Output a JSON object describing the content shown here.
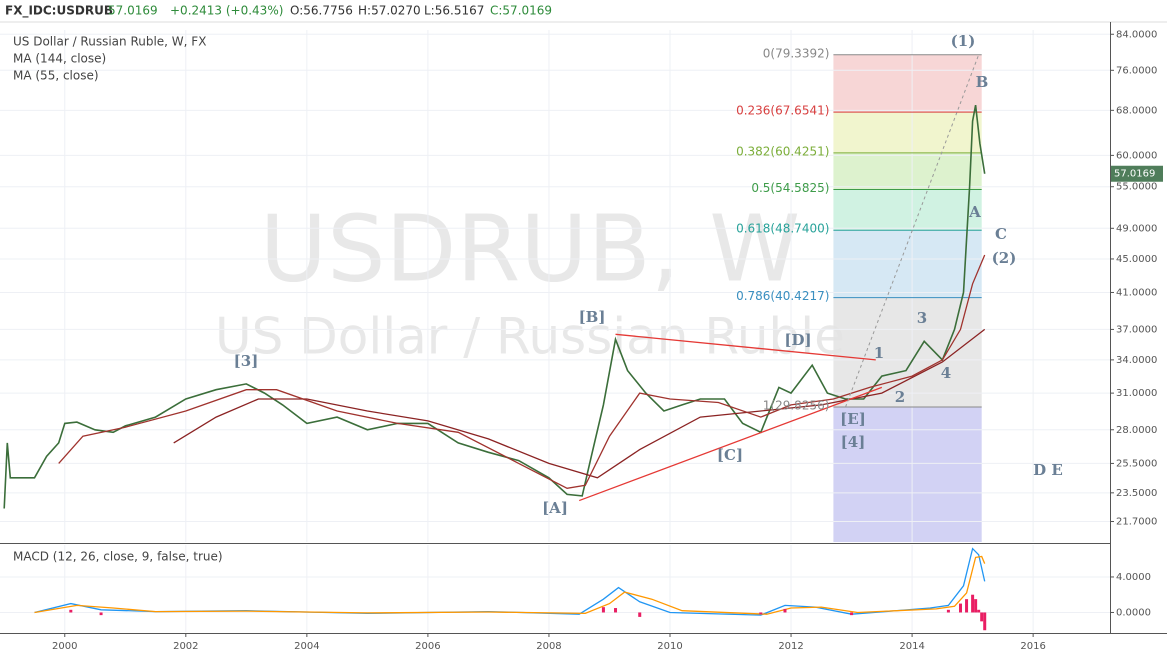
{
  "header": {
    "symbol": "FX_IDC:USDRUB",
    "price": "57.0169",
    "change": "+0.2413 (+0.43%)",
    "open": "O:56.7756",
    "high": "H:57.0270",
    "low": "L:56.5167",
    "close": "C:57.0169"
  },
  "chart_data": [
    {
      "type": "line",
      "title": "US Dollar / Russian Ruble, W, FX",
      "watermark": [
        "USDRUB, W",
        "US Dollar / Russian Ruble"
      ],
      "log_scale": true,
      "grid": true,
      "xlim": [
        1998.93,
        2017.27
      ],
      "xticks": [
        2000,
        2002,
        2004,
        2006,
        2008,
        2010,
        2012,
        2014,
        2016
      ],
      "ylim": [
        20.5,
        85
      ],
      "yticks": [
        {
          "value": 21.7,
          "label": "21.7000"
        },
        {
          "value": 23.5,
          "label": "23.5000"
        },
        {
          "value": 25.5,
          "label": "25.5000"
        },
        {
          "value": 28,
          "label": "28.0000"
        },
        {
          "value": 31,
          "label": "31.0000"
        },
        {
          "value": 34,
          "label": "34.0000"
        },
        {
          "value": 37,
          "label": "37.0000"
        },
        {
          "value": 41,
          "label": "41.0000"
        },
        {
          "value": 45,
          "label": "45.0000"
        },
        {
          "value": 49,
          "label": "49.0000"
        },
        {
          "value": 55,
          "label": "55.0000"
        },
        {
          "value": 60,
          "label": "60.0000"
        },
        {
          "value": 68,
          "label": "68.0000"
        },
        {
          "value": 76,
          "label": "76.0000"
        },
        {
          "value": 84,
          "label": "84.0000"
        }
      ],
      "series": [
        {
          "color": "#3b6e3a",
          "x": [
            1999.0,
            1999.05,
            1999.1,
            1999.3,
            1999.5,
            1999.7,
            1999.9,
            2000.0,
            2000.2,
            2000.5,
            2000.8,
            2001.0,
            2001.5,
            2002.0,
            2002.5,
            2003.0,
            2003.3,
            2003.6,
            2004.0,
            2004.5,
            2005.0,
            2005.5,
            2006.0,
            2006.5,
            2007.0,
            2007.5,
            2008.0,
            2008.3,
            2008.55,
            2008.7,
            2008.9,
            2009.1,
            2009.3,
            2009.6,
            2009.9,
            2010.2,
            2010.5,
            2010.9,
            2011.2,
            2011.5,
            2011.8,
            2012.0,
            2012.35,
            2012.6,
            2012.9,
            2013.2,
            2013.5,
            2013.9,
            2014.2,
            2014.5,
            2014.7,
            2014.85,
            2014.95,
            2015.0,
            2015.05,
            2015.12,
            2015.2
          ],
          "values": [
            22.5,
            27,
            24.5,
            24.5,
            24.5,
            26,
            27,
            28.5,
            28.6,
            28,
            27.8,
            28.3,
            29,
            30.5,
            31.3,
            31.8,
            31,
            30,
            28.5,
            29,
            28,
            28.5,
            28.5,
            27,
            26.3,
            25.7,
            24.5,
            23.4,
            23.3,
            26,
            30,
            36,
            33,
            31,
            29.5,
            30,
            30.5,
            30.5,
            28.5,
            27.8,
            31.5,
            31,
            33.5,
            31,
            30.5,
            30.5,
            32.5,
            33,
            35.8,
            34,
            37,
            41,
            55,
            66,
            69,
            62,
            57.0169
          ]
        },
        {
          "name": "MA (144, close)",
          "color": "#8b2323",
          "x": [
            2001.8,
            2002.5,
            2003.2,
            2004.0,
            2005.0,
            2006.0,
            2007.0,
            2008.0,
            2008.8,
            2009.5,
            2010.5,
            2011.5,
            2012.5,
            2013.5,
            2014.5,
            2015.2
          ],
          "values": [
            27,
            29,
            30.5,
            30.5,
            29.5,
            28.7,
            27.3,
            25.5,
            24.5,
            26.5,
            29,
            29.5,
            30,
            31,
            33.8,
            37
          ]
        },
        {
          "name": "MA (55, close)",
          "color": "#a0332e",
          "x": [
            1999.9,
            2000.3,
            2001.0,
            2002.0,
            2003.0,
            2003.5,
            2004.5,
            2005.5,
            2006.5,
            2007.5,
            2008.3,
            2008.6,
            2009.0,
            2009.5,
            2010.0,
            2010.8,
            2011.5,
            2012.0,
            2012.7,
            2013.3,
            2014.0,
            2014.5,
            2014.8,
            2015.0,
            2015.2
          ],
          "values": [
            25.5,
            27.5,
            28.2,
            29.5,
            31.3,
            31.3,
            29.5,
            28.5,
            27.8,
            25.5,
            23.8,
            24,
            27.5,
            31,
            30.5,
            30.2,
            29,
            30,
            30.5,
            31.5,
            32.5,
            34,
            37,
            42,
            45.5
          ]
        }
      ],
      "fib": {
        "x": [
          2012.7,
          2015.15
        ],
        "levels": [
          {
            "label": "0(79.3392)",
            "value": 79.3392,
            "color": "#888888",
            "fill": "#f6cfcf"
          },
          {
            "label": "0.236(67.6541)",
            "value": 67.6541,
            "color": "#d84040",
            "fill": "#eef3c6"
          },
          {
            "label": "0.382(60.4251)",
            "value": 60.4251,
            "color": "#7cae3a",
            "fill": "#d7f0c6"
          },
          {
            "label": "0.5(54.5825)",
            "value": 54.5825,
            "color": "#3e9c4a",
            "fill": "#c8f0dd"
          },
          {
            "label": "0.618(48.7400)",
            "value": 48.74,
            "color": "#29a39a",
            "fill": "#cfe4f2"
          },
          {
            "label": "0.786(40.4217)",
            "value": 40.4217,
            "color": "#3a8fc0",
            "fill": "#e3e3e3"
          },
          {
            "label": "1(29.8256)",
            "value": 29.8256,
            "color": "#888888",
            "fill": "#cacaf2"
          }
        ]
      },
      "trendlines": [
        {
          "color": "#e53935",
          "x": [
            2009.1,
            2013.4
          ],
          "y": [
            36.5,
            34
          ]
        },
        {
          "color": "#e53935",
          "x": [
            2008.5,
            2013.5
          ],
          "y": [
            23,
            31.5
          ]
        },
        {
          "color": "#999999",
          "dashed": true,
          "x": [
            2012.9,
            2015.1
          ],
          "y": [
            29.8256,
            79.3392
          ]
        }
      ],
      "wave_labels": [
        "(1)",
        "B",
        "A",
        "C",
        "(2)",
        "[3]",
        "[B]",
        "[D]",
        "1",
        "3",
        "4",
        "2",
        "[E]",
        "[4]",
        "[C]",
        "[A]",
        "D E"
      ]
    },
    {
      "type": "line",
      "title": "MACD (12, 26, close, 9, false, true)",
      "grid": true,
      "xlim": [
        1998.93,
        2017.27
      ],
      "ylim": [
        -2.2,
        7.6
      ],
      "yticks": [
        {
          "value": 0,
          "label": "0.0000"
        },
        {
          "value": 4,
          "label": "4.0000"
        }
      ],
      "series": [
        {
          "color": "#2196f3",
          "x": [
            1999.5,
            2000.1,
            2000.6,
            2001.5,
            2003.0,
            2005.0,
            2007.0,
            2008.5,
            2008.9,
            2009.15,
            2009.5,
            2010.0,
            2011.5,
            2011.9,
            2012.4,
            2013.0,
            2014.3,
            2014.6,
            2014.85,
            2015.0,
            2015.1,
            2015.2
          ],
          "values": [
            0,
            1.0,
            0.3,
            0.1,
            0.2,
            -0.1,
            0.1,
            -0.2,
            1.5,
            2.8,
            1.2,
            0,
            -0.3,
            0.8,
            0.6,
            -0.2,
            0.5,
            0.8,
            3,
            7.2,
            6.5,
            3.5
          ]
        },
        {
          "color": "#ff9800",
          "x": [
            1999.5,
            2000.2,
            2000.8,
            2001.5,
            2003.0,
            2005.0,
            2007.0,
            2008.6,
            2009.0,
            2009.25,
            2009.7,
            2010.2,
            2011.6,
            2012.0,
            2012.5,
            2013.1,
            2014.4,
            2014.7,
            2014.9,
            2015.05,
            2015.15,
            2015.2
          ],
          "values": [
            0,
            0.8,
            0.5,
            0.1,
            0.15,
            -0.05,
            0.05,
            -0.1,
            1.0,
            2.3,
            1.5,
            0.2,
            -0.2,
            0.5,
            0.6,
            0,
            0.4,
            0.7,
            2.2,
            6.2,
            6.3,
            5.5
          ]
        },
        {
          "color": "#e91e63",
          "style": "histogram",
          "x": [
            2000.1,
            2000.6,
            2008.9,
            2009.1,
            2009.5,
            2011.5,
            2011.9,
            2013.0,
            2014.6,
            2014.8,
            2014.9,
            2015.0,
            2015.05,
            2015.1,
            2015.15,
            2015.2
          ],
          "values": [
            0.3,
            -0.3,
            0.6,
            0.5,
            -0.5,
            -0.2,
            0.4,
            -0.3,
            0.3,
            1.0,
            1.5,
            2.0,
            1.5,
            0.3,
            -1.0,
            -2.0
          ]
        }
      ]
    }
  ]
}
